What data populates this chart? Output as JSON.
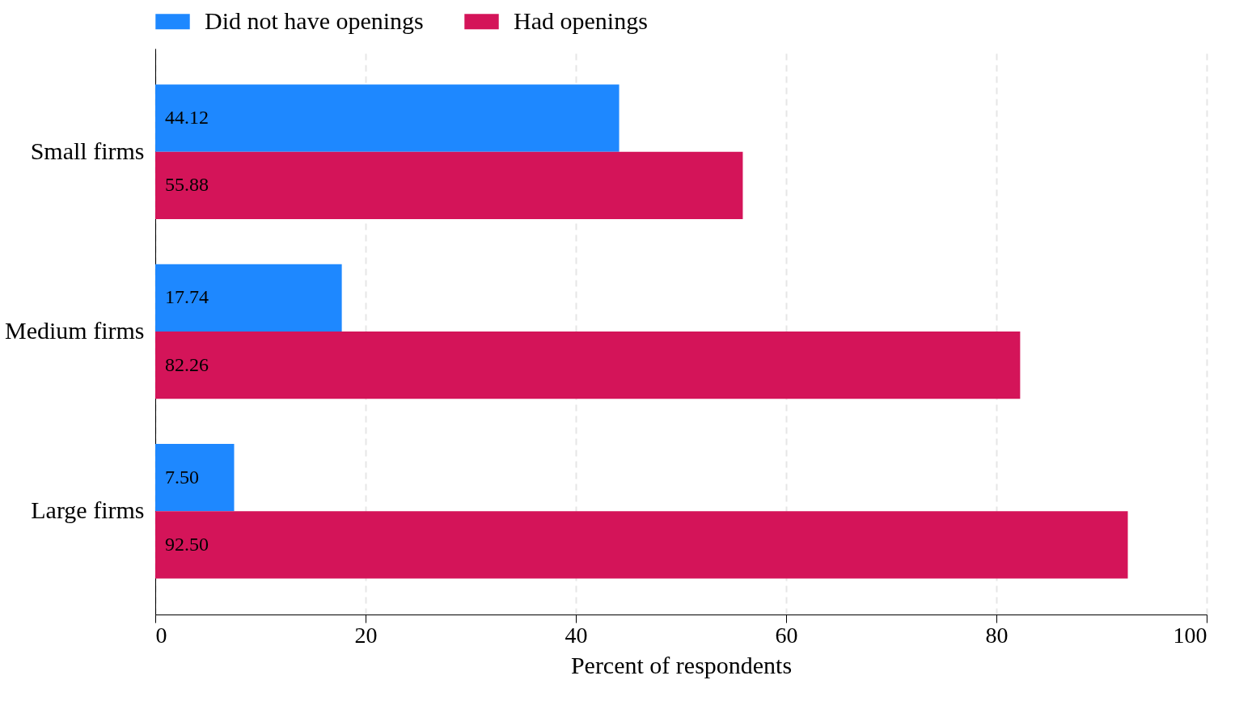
{
  "chart_data": {
    "type": "bar",
    "orientation": "horizontal",
    "categories": [
      "Small firms",
      "Medium firms",
      "Large firms"
    ],
    "series": [
      {
        "name": "Did not have openings",
        "color": "#1e88ff",
        "values": [
          44.12,
          17.74,
          7.5
        ],
        "value_labels": [
          "44.12",
          "17.74",
          "7.50"
        ]
      },
      {
        "name": "Had openings",
        "color": "#d41459",
        "values": [
          55.88,
          82.26,
          92.5
        ],
        "value_labels": [
          "55.88",
          "82.26",
          "92.50"
        ]
      }
    ],
    "xlabel": "Percent of respondents",
    "xlim": [
      0,
      100
    ],
    "xticks": [
      0,
      20,
      40,
      60,
      80,
      100
    ],
    "grid": "x",
    "legend": "top"
  }
}
